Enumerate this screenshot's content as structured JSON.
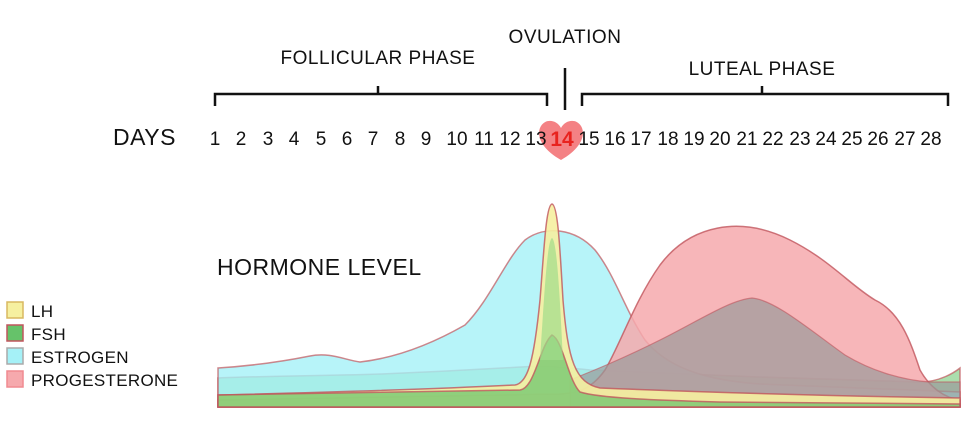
{
  "phases": {
    "follicular": "FOLLICULAR PHASE",
    "ovulation": "OVULATION",
    "luteal": "LUTEAL PHASE"
  },
  "days_label": "DAYS",
  "days": [
    "1",
    "2",
    "3",
    "4",
    "5",
    "6",
    "7",
    "8",
    "9",
    "10",
    "11",
    "12",
    "13",
    "14",
    "15",
    "16",
    "17",
    "18",
    "19",
    "20",
    "21",
    "22",
    "23",
    "24",
    "25",
    "26",
    "27",
    "28"
  ],
  "highlight_day": "14",
  "hormone_label": "HORMONE LEVEL",
  "legend": [
    {
      "label": "LH",
      "color": "#f6f0a0"
    },
    {
      "label": "FSH",
      "color": "#66c26a"
    },
    {
      "label": "ESTROGEN",
      "color": "#a5f1f7"
    },
    {
      "label": "PROGESTERONE",
      "color": "#f6a9ad"
    }
  ],
  "colors": {
    "heart": "#f26b6e",
    "day14": "#e8231f",
    "curve_stroke": "#c0555d"
  }
}
